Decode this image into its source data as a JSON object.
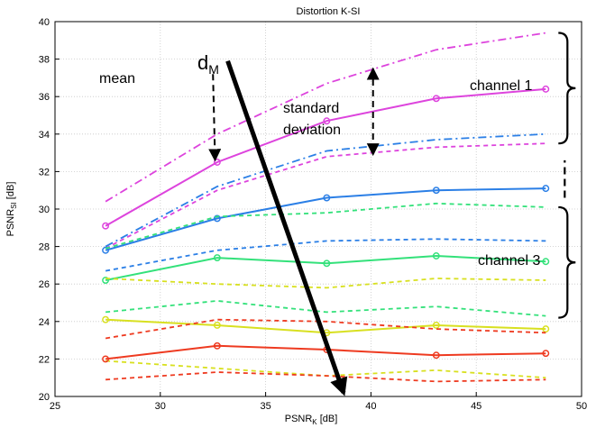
{
  "chart_data": {
    "type": "line",
    "title": "Distortion K-SI",
    "xlabel": "PSNR",
    "xlabel_sub": "K",
    "xlabel_unit": " [dB]",
    "ylabel": "PSNR",
    "ylabel_sub": "SI",
    "ylabel_unit": " [dB]",
    "xlim": [
      25,
      50
    ],
    "ylim": [
      20,
      40
    ],
    "xticks": [
      25,
      30,
      35,
      40,
      45,
      50
    ],
    "yticks": [
      20,
      22,
      24,
      26,
      28,
      30,
      32,
      34,
      36,
      38,
      40
    ],
    "grid": true,
    "x": [
      27.4,
      32.7,
      37.9,
      43.1,
      48.3
    ],
    "series": [
      {
        "color": "#dd44dd",
        "style": "solid",
        "markers": true,
        "values": [
          29.1,
          32.5,
          34.7,
          35.9,
          36.4
        ]
      },
      {
        "color": "#dd44dd",
        "style": "dashdot",
        "markers": false,
        "values": [
          30.4,
          34.0,
          36.7,
          38.5,
          39.4
        ]
      },
      {
        "color": "#dd44dd",
        "style": "dashed",
        "markers": false,
        "values": [
          27.9,
          31.0,
          32.8,
          33.3,
          33.5
        ]
      },
      {
        "color": "#2b7fe6",
        "style": "solid",
        "markers": true,
        "values": [
          27.8,
          29.5,
          30.6,
          31.0,
          31.1
        ]
      },
      {
        "color": "#2b7fe6",
        "style": "dashdot",
        "markers": false,
        "values": [
          28.0,
          31.2,
          33.1,
          33.7,
          34.0
        ]
      },
      {
        "color": "#2b7fe6",
        "style": "dashed",
        "markers": false,
        "values": [
          26.7,
          27.8,
          28.3,
          28.4,
          28.3
        ]
      },
      {
        "color": "#33e17a",
        "style": "solid",
        "markers": true,
        "values": [
          26.2,
          27.4,
          27.1,
          27.5,
          27.2
        ]
      },
      {
        "color": "#33e17a",
        "style": "dashed",
        "markers": false,
        "values": [
          27.9,
          29.6,
          29.8,
          30.3,
          30.1
        ]
      },
      {
        "color": "#33e17a",
        "style": "dashed",
        "markers": false,
        "values": [
          24.5,
          25.1,
          24.5,
          24.8,
          24.3
        ]
      },
      {
        "color": "#d8e020",
        "style": "solid",
        "markers": true,
        "values": [
          24.1,
          23.8,
          23.4,
          23.8,
          23.6
        ]
      },
      {
        "color": "#d8e020",
        "style": "dashed",
        "markers": false,
        "values": [
          26.3,
          26.0,
          25.8,
          26.3,
          26.2
        ]
      },
      {
        "color": "#d8e020",
        "style": "dashed",
        "markers": false,
        "values": [
          21.9,
          21.5,
          21.1,
          21.4,
          21.0
        ]
      },
      {
        "color": "#ee3a20",
        "style": "solid",
        "markers": true,
        "values": [
          22.0,
          22.7,
          22.5,
          22.2,
          22.3
        ]
      },
      {
        "color": "#ee3a20",
        "style": "dashed",
        "markers": false,
        "values": [
          23.1,
          24.1,
          24.0,
          23.6,
          23.4
        ]
      },
      {
        "color": "#ee3a20",
        "style": "dashed",
        "markers": false,
        "values": [
          20.9,
          21.3,
          21.1,
          20.8,
          20.9
        ]
      }
    ],
    "annotations": {
      "mean": "mean",
      "std_line1": "standard",
      "std_line2": "deviation",
      "dm_main": "d",
      "dm_sub": "M",
      "channel1": "channel 1",
      "channel3": "channel 3"
    },
    "annotation_points": {
      "mean_arrow": {
        "from": [
          32.5,
          37.2
        ],
        "to": [
          32.6,
          32.6
        ]
      },
      "std_arrow": {
        "x": 40.1,
        "from": [
          37.5
        ],
        "to": [
          32.9
        ]
      },
      "dm_arrow": {
        "from": [
          33.2,
          37.9
        ],
        "to": [
          38.7,
          20.2
        ]
      },
      "channel1_brace": {
        "x": 48.9,
        "y": [
          33.5,
          39.4
        ]
      },
      "channel3_brace": {
        "x": 48.9,
        "y": [
          24.2,
          30.1
        ]
      },
      "gap_marker": {
        "x": 49.2,
        "y": [
          30.6,
          32.6
        ]
      }
    }
  }
}
